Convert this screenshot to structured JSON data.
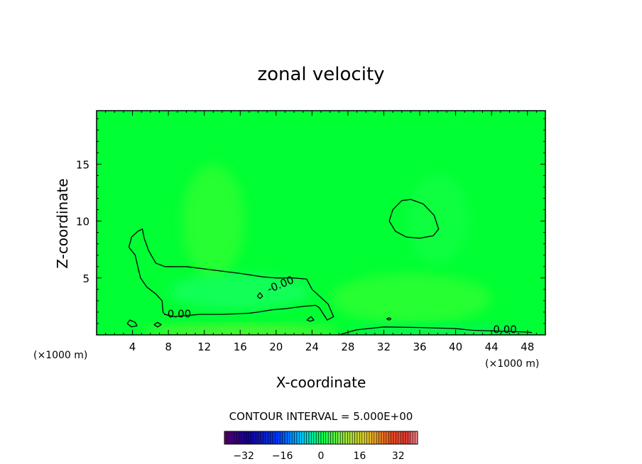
{
  "chart_data": {
    "type": "heatmap",
    "title": "zonal velocity",
    "xlabel": "X-coordinate",
    "ylabel": "Z-coordinate",
    "x_unit_left": "(×1000 m)",
    "x_unit_right": "(×1000 m)",
    "xlim": [
      0,
      50
    ],
    "ylim": [
      0,
      19.7
    ],
    "xticks": [
      4,
      8,
      12,
      16,
      20,
      24,
      28,
      32,
      36,
      40,
      44,
      48
    ],
    "yticks": [
      5,
      10,
      15
    ],
    "background_color": "#00ff33",
    "contour_interval_text": "CONTOUR INTERVAL = 5.000E+00",
    "contour_labels": [
      "-0.00",
      "-0.00",
      "0.00"
    ],
    "contours": [
      {
        "level": "0",
        "points": [
          [
            3.6,
            7.7
          ],
          [
            3.9,
            8.6
          ],
          [
            4.6,
            9.1
          ],
          [
            5.1,
            9.3
          ],
          [
            5.3,
            8.5
          ],
          [
            5.8,
            7.4
          ],
          [
            6.6,
            6.3
          ],
          [
            7.6,
            6.0
          ],
          [
            10,
            6.0
          ],
          [
            13,
            5.7
          ],
          [
            16,
            5.4
          ],
          [
            18.5,
            5.1
          ],
          [
            20,
            5.0
          ],
          [
            22,
            5.0
          ],
          [
            23.4,
            4.9
          ],
          [
            24,
            4.0
          ],
          [
            25.8,
            2.7
          ],
          [
            26.4,
            1.6
          ],
          [
            25.7,
            1.3
          ],
          [
            24.8,
            2.4
          ],
          [
            24.4,
            2.6
          ],
          [
            23,
            2.5
          ],
          [
            21,
            2.3
          ],
          [
            19.5,
            2.2
          ],
          [
            18,
            2.0
          ],
          [
            17,
            1.9
          ],
          [
            14,
            1.8
          ],
          [
            11.5,
            1.8
          ],
          [
            10,
            1.7
          ],
          [
            8.6,
            1.6
          ],
          [
            7.6,
            1.8
          ],
          [
            7.4,
            2.0
          ],
          [
            7.3,
            3.0
          ],
          [
            6.6,
            3.6
          ],
          [
            5.6,
            4.2
          ],
          [
            4.9,
            5.0
          ],
          [
            4.5,
            6.3
          ],
          [
            4.3,
            7.0
          ],
          [
            3.6,
            7.7
          ]
        ]
      },
      {
        "level": "0",
        "points": [
          [
            32.6,
            10.0
          ],
          [
            33.0,
            11.0
          ],
          [
            34.0,
            11.8
          ],
          [
            35.0,
            11.9
          ],
          [
            36.4,
            11.5
          ],
          [
            37.6,
            10.5
          ],
          [
            38.1,
            9.3
          ],
          [
            37.5,
            8.7
          ],
          [
            36.0,
            8.5
          ],
          [
            34.5,
            8.6
          ],
          [
            33.3,
            9.1
          ],
          [
            32.6,
            10.0
          ]
        ]
      },
      {
        "level": "0",
        "points": [
          [
            27.2,
            0.05
          ],
          [
            29.0,
            0.45
          ],
          [
            32.0,
            0.7
          ],
          [
            36.0,
            0.65
          ],
          [
            40.0,
            0.55
          ],
          [
            42.0,
            0.4
          ],
          [
            44.0,
            0.35
          ],
          [
            48.0,
            0.25
          ],
          [
            48.5,
            0.2
          ]
        ]
      },
      {
        "level": "0",
        "points": [
          [
            3.4,
            1.0
          ],
          [
            3.7,
            1.3
          ],
          [
            4.3,
            1.1
          ],
          [
            4.5,
            0.8
          ],
          [
            3.9,
            0.7
          ],
          [
            3.4,
            1.0
          ]
        ]
      },
      {
        "level": "0",
        "points": [
          [
            6.4,
            0.9
          ],
          [
            6.8,
            1.1
          ],
          [
            7.2,
            0.9
          ],
          [
            6.8,
            0.7
          ],
          [
            6.4,
            0.9
          ]
        ]
      },
      {
        "level": "0",
        "points": [
          [
            23.4,
            1.3
          ],
          [
            23.9,
            1.6
          ],
          [
            24.2,
            1.3
          ],
          [
            23.8,
            1.2
          ],
          [
            23.4,
            1.3
          ]
        ]
      },
      {
        "level": "0",
        "points": [
          [
            17.9,
            3.4
          ],
          [
            18.2,
            3.7
          ],
          [
            18.5,
            3.4
          ],
          [
            18.2,
            3.2
          ],
          [
            17.9,
            3.4
          ]
        ]
      },
      {
        "level": "0",
        "points": [
          [
            32.3,
            1.4
          ],
          [
            32.6,
            1.5
          ],
          [
            32.8,
            1.4
          ],
          [
            32.6,
            1.3
          ],
          [
            32.3,
            1.4
          ]
        ]
      }
    ],
    "shading_patches": [
      {
        "cx": 13.0,
        "cy": 10.0,
        "rx": 3.5,
        "ry": 5.0,
        "color": "#44ff33",
        "opacity": 0.55
      },
      {
        "cx": 16.0,
        "cy": 3.8,
        "rx": 8.0,
        "ry": 1.6,
        "color": "#22ff77",
        "opacity": 0.55
      },
      {
        "cx": 35.0,
        "cy": 3.2,
        "rx": 9.0,
        "ry": 2.2,
        "color": "#55ff33",
        "opacity": 0.45
      },
      {
        "cx": 38.0,
        "cy": 10.2,
        "rx": 3.5,
        "ry": 4.0,
        "color": "#22ff55",
        "opacity": 0.4
      },
      {
        "cx": 16.0,
        "cy": 0.3,
        "rx": 11.0,
        "ry": 0.45,
        "color": "#88ee33",
        "opacity": 0.75
      },
      {
        "cx": 38.0,
        "cy": 0.35,
        "rx": 10.0,
        "ry": 0.45,
        "color": "#11ee66",
        "opacity": 0.75
      }
    ],
    "colorbar": {
      "min": -40,
      "max": 40,
      "ticks": [
        -32,
        -16,
        0,
        16,
        32
      ],
      "tick_labels": [
        "−32",
        "−16",
        "0",
        "16",
        "32"
      ]
    }
  }
}
